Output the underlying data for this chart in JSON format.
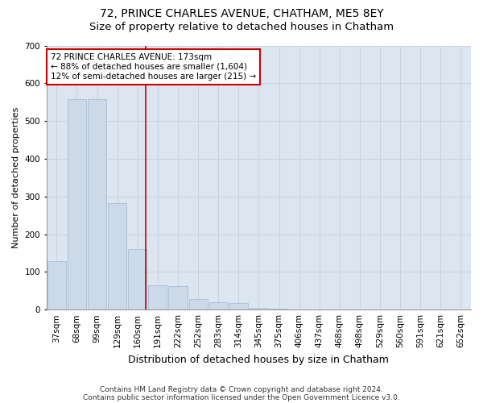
{
  "title1": "72, PRINCE CHARLES AVENUE, CHATHAM, ME5 8EY",
  "title2": "Size of property relative to detached houses in Chatham",
  "xlabel": "Distribution of detached houses by size in Chatham",
  "ylabel": "Number of detached properties",
  "footnote1": "Contains HM Land Registry data © Crown copyright and database right 2024.",
  "footnote2": "Contains public sector information licensed under the Open Government Licence v3.0.",
  "bar_labels": [
    "37sqm",
    "68sqm",
    "99sqm",
    "129sqm",
    "160sqm",
    "191sqm",
    "222sqm",
    "252sqm",
    "283sqm",
    "314sqm",
    "345sqm",
    "375sqm",
    "406sqm",
    "437sqm",
    "468sqm",
    "498sqm",
    "529sqm",
    "560sqm",
    "591sqm",
    "621sqm",
    "652sqm"
  ],
  "bar_values": [
    128,
    558,
    558,
    283,
    160,
    65,
    63,
    28,
    20,
    18,
    5,
    3,
    0,
    0,
    0,
    0,
    0,
    0,
    0,
    0,
    0
  ],
  "bar_color": "#ccd9e8",
  "bar_edge_color": "#aabdd4",
  "grid_color": "#c5cfe0",
  "background_color": "#dce6f0",
  "fig_background_color": "#ffffff",
  "property_line_label": "72 PRINCE CHARLES AVENUE: 173sqm",
  "annotation_line1": "← 88% of detached houses are smaller (1,604)",
  "annotation_line2": "12% of semi-detached houses are larger (215) →",
  "annotation_box_facecolor": "#ffffff",
  "annotation_border_color": "#cc0000",
  "vline_color": "#cc0000",
  "vline_position": 4.42,
  "ylim": [
    0,
    700
  ],
  "yticks": [
    0,
    100,
    200,
    300,
    400,
    500,
    600,
    700
  ],
  "title1_fontsize": 10,
  "title2_fontsize": 9.5,
  "xlabel_fontsize": 9,
  "ylabel_fontsize": 8,
  "tick_fontsize": 7.5,
  "annotation_fontsize": 7.5,
  "footnote_fontsize": 6.5
}
